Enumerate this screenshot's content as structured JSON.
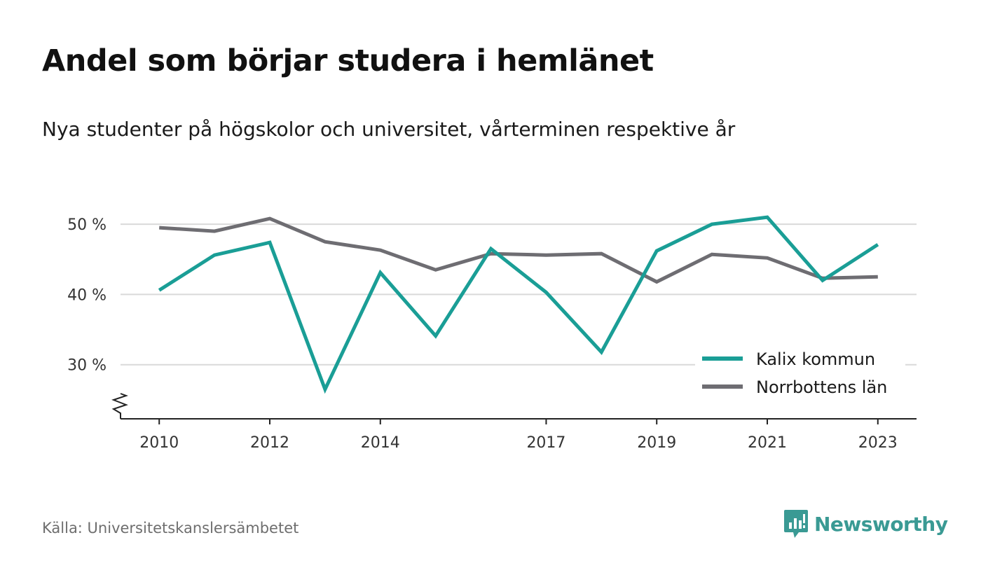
{
  "title": "Andel som börjar studera i hemlänet",
  "subtitle": "Nya studenter på högskolor och universitet, vårterminen respektive år",
  "source": "Källa: Universitetskanslersämbetet",
  "brand": {
    "name": "Newsworthy",
    "icon": "newsworthy-logo-icon",
    "color": "#3a9a94"
  },
  "chart_data": {
    "type": "line",
    "x": [
      2010,
      2011,
      2012,
      2013,
      2014,
      2015,
      2016,
      2017,
      2018,
      2019,
      2020,
      2021,
      2022,
      2023
    ],
    "x_tick_values": [
      2010,
      2012,
      2014,
      2017,
      2019,
      2021,
      2023
    ],
    "x_tick_labels": [
      "2010",
      "2012",
      "2014",
      "2017",
      "2019",
      "2021",
      "2023"
    ],
    "y_tick_values": [
      30,
      40,
      50
    ],
    "y_tick_labels": [
      "30 %",
      "40 %",
      "50 %"
    ],
    "ylim": [
      22.3,
      53
    ],
    "xlim": [
      2009.3,
      2023.7
    ],
    "axis_break": true,
    "grid": true,
    "legend_position": "bottom-right",
    "series": [
      {
        "name": "Kalix kommun",
        "color": "#1a9e96",
        "values": [
          40.6,
          45.6,
          47.4,
          26.5,
          43.1,
          34.1,
          46.5,
          40.3,
          31.8,
          46.2,
          50.0,
          51.0,
          42.0,
          47.1
        ]
      },
      {
        "name": "Norrbottens län",
        "color": "#6e6d72",
        "values": [
          49.5,
          49.0,
          50.8,
          47.5,
          46.3,
          43.5,
          45.8,
          45.6,
          45.8,
          41.8,
          45.7,
          45.2,
          42.3,
          42.5
        ]
      }
    ]
  }
}
